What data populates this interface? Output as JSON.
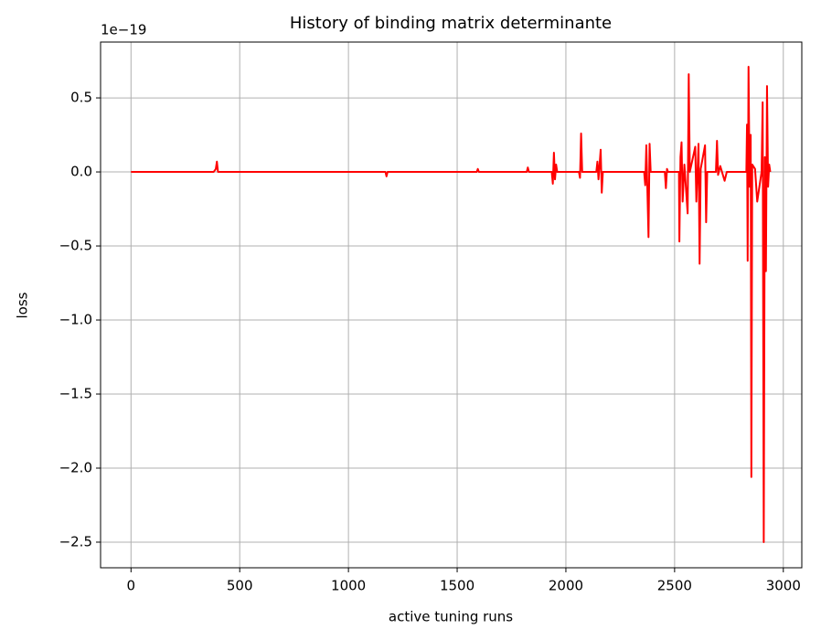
{
  "chart_data": {
    "type": "line",
    "title": "History of binding matrix determinante",
    "x_label": "active tuning runs",
    "y_label": "loss",
    "y_offset_text": "1e−19",
    "grid": true,
    "xlim": [
      -140,
      3085
    ],
    "ylim": [
      -2.673,
      0.877
    ],
    "xticks": [
      0,
      500,
      1000,
      1500,
      2000,
      2500,
      3000
    ],
    "yticks": [
      {
        "value": 0.5,
        "label": "0.5"
      },
      {
        "value": 0.0,
        "label": "0.0"
      },
      {
        "value": -0.5,
        "label": "−0.5"
      },
      {
        "value": -1.0,
        "label": "−1.0"
      },
      {
        "value": -1.5,
        "label": "−1.5"
      },
      {
        "value": -2.0,
        "label": "−2.0"
      },
      {
        "value": -2.5,
        "label": "−2.5"
      }
    ],
    "x": [
      0,
      380,
      390,
      395,
      400,
      410,
      1170,
      1175,
      1180,
      1590,
      1595,
      1600,
      1820,
      1825,
      1830,
      1935,
      1940,
      1945,
      1950,
      1955,
      1960,
      2060,
      2065,
      2070,
      2075,
      2140,
      2145,
      2150,
      2160,
      2165,
      2170,
      2360,
      2365,
      2370,
      2380,
      2385,
      2390,
      2455,
      2460,
      2465,
      2470,
      2520,
      2522,
      2527,
      2532,
      2537,
      2545,
      2560,
      2565,
      2570,
      2595,
      2600,
      2610,
      2615,
      2620,
      2640,
      2645,
      2650,
      2690,
      2695,
      2700,
      2710,
      2730,
      2740,
      2830,
      2833,
      2836,
      2840,
      2845,
      2850,
      2853,
      2857,
      2870,
      2880,
      2900,
      2905,
      2910,
      2915,
      2920,
      2925,
      2930,
      2935,
      2940
    ],
    "series": [
      {
        "color": "#ff0000",
        "values": [
          0,
          0,
          0.02,
          0.07,
          0,
          0,
          0,
          -0.03,
          0,
          0,
          0.02,
          0,
          0,
          0.03,
          0,
          0,
          -0.08,
          0.13,
          -0.05,
          0.05,
          0,
          0,
          -0.04,
          0.26,
          0,
          0,
          0.07,
          -0.05,
          0.15,
          -0.14,
          0,
          0,
          -0.09,
          0.18,
          -0.44,
          0.19,
          0,
          0,
          -0.11,
          0.02,
          0,
          0,
          -0.47,
          0.1,
          0.2,
          -0.2,
          0.05,
          -0.28,
          0.66,
          0,
          0.17,
          -0.2,
          0.19,
          -0.62,
          0.02,
          0.18,
          -0.34,
          0,
          0,
          0.21,
          -0.02,
          0.04,
          -0.06,
          0,
          0,
          0.32,
          -0.6,
          0.71,
          -0.1,
          0.25,
          -2.06,
          0.05,
          0.02,
          -0.2,
          0,
          0.47,
          -2.5,
          0.1,
          -0.67,
          0.58,
          -0.1,
          0.05,
          0
        ]
      }
    ]
  }
}
